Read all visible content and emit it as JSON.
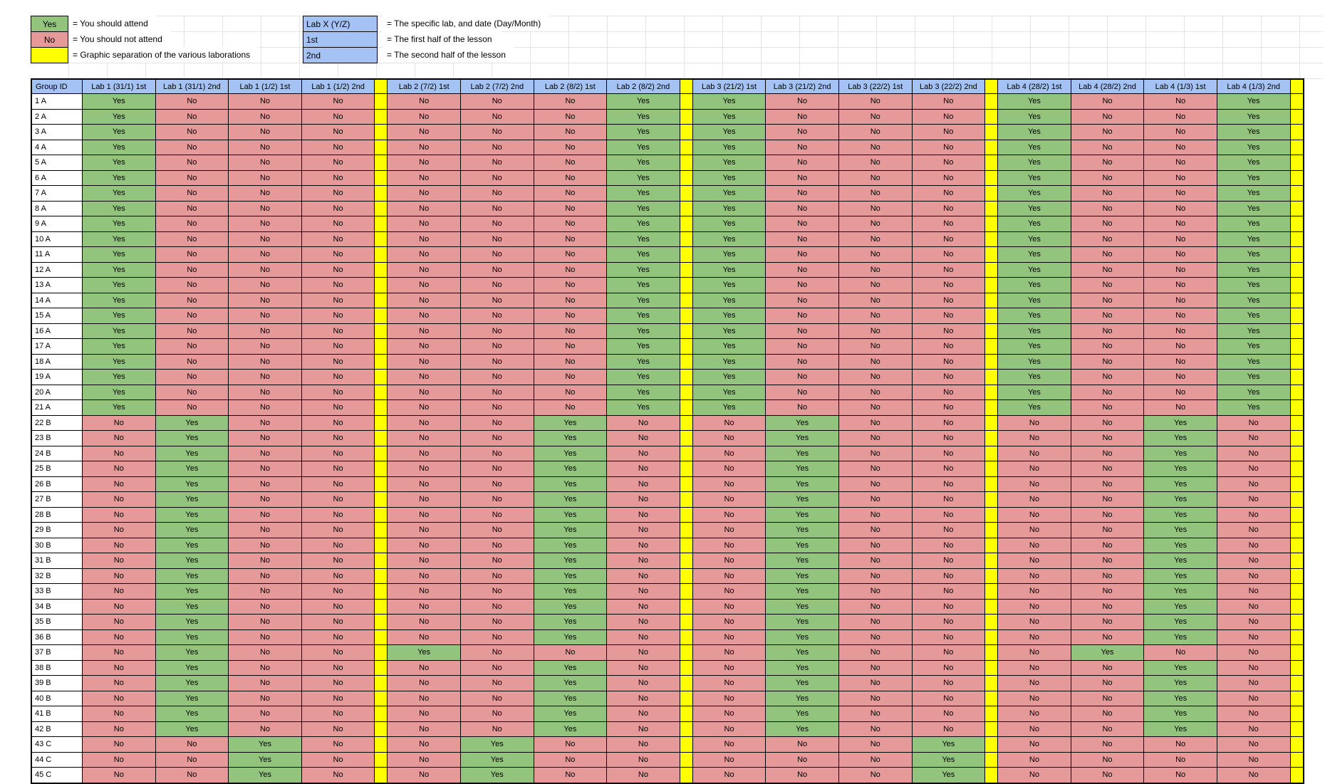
{
  "colors": {
    "yes": "#93c47d",
    "no": "#e69999",
    "separator": "#ffff00",
    "key": "#a4c2f4",
    "gridline": "#e4e4e4",
    "border": "#000000"
  },
  "legend": {
    "left": [
      {
        "label": "Yes",
        "description": "= You should attend"
      },
      {
        "label": "No",
        "description": "= You should not attend"
      },
      {
        "label": "",
        "description": "= Graphic separation of the various laborations"
      }
    ],
    "right": [
      {
        "label": "Lab X (Y/Z)",
        "description": "= The specific lab, and date (Day/Month)"
      },
      {
        "label": "1st",
        "description": "= The first half of the lesson"
      },
      {
        "label": "2nd",
        "description": "= The second half of the lesson"
      }
    ]
  },
  "table": {
    "corner_header": "Group ID",
    "columns": [
      "Lab 1 (31/1) 1st",
      "Lab 1 (31/1) 2nd",
      "Lab 1 (1/2) 1st",
      "Lab 1 (1/2) 2nd",
      "Lab 2 (7/2) 1st",
      "Lab 2 (7/2) 2nd",
      "Lab 2 (8/2) 1st",
      "Lab 2 (8/2) 2nd",
      "Lab 3 (21/2) 1st",
      "Lab 3 (21/2) 2nd",
      "Lab 3 (22/2) 1st",
      "Lab 3 (22/2) 2nd",
      "Lab 4 (28/2) 1st",
      "Lab 4 (28/2) 2nd",
      "Lab 4 (1/3) 1st",
      "Lab 4 (1/3) 2nd"
    ],
    "rows": [
      {
        "id": "1 A",
        "values": [
          "Yes",
          "No",
          "No",
          "No",
          "No",
          "No",
          "No",
          "Yes",
          "Yes",
          "No",
          "No",
          "No",
          "Yes",
          "No",
          "No",
          "Yes"
        ]
      },
      {
        "id": "2 A",
        "values": [
          "Yes",
          "No",
          "No",
          "No",
          "No",
          "No",
          "No",
          "Yes",
          "Yes",
          "No",
          "No",
          "No",
          "Yes",
          "No",
          "No",
          "Yes"
        ]
      },
      {
        "id": "3 A",
        "values": [
          "Yes",
          "No",
          "No",
          "No",
          "No",
          "No",
          "No",
          "Yes",
          "Yes",
          "No",
          "No",
          "No",
          "Yes",
          "No",
          "No",
          "Yes"
        ]
      },
      {
        "id": "4 A",
        "values": [
          "Yes",
          "No",
          "No",
          "No",
          "No",
          "No",
          "No",
          "Yes",
          "Yes",
          "No",
          "No",
          "No",
          "Yes",
          "No",
          "No",
          "Yes"
        ]
      },
      {
        "id": "5 A",
        "values": [
          "Yes",
          "No",
          "No",
          "No",
          "No",
          "No",
          "No",
          "Yes",
          "Yes",
          "No",
          "No",
          "No",
          "Yes",
          "No",
          "No",
          "Yes"
        ]
      },
      {
        "id": "6 A",
        "values": [
          "Yes",
          "No",
          "No",
          "No",
          "No",
          "No",
          "No",
          "Yes",
          "Yes",
          "No",
          "No",
          "No",
          "Yes",
          "No",
          "No",
          "Yes"
        ]
      },
      {
        "id": "7 A",
        "values": [
          "Yes",
          "No",
          "No",
          "No",
          "No",
          "No",
          "No",
          "Yes",
          "Yes",
          "No",
          "No",
          "No",
          "Yes",
          "No",
          "No",
          "Yes"
        ]
      },
      {
        "id": "8 A",
        "values": [
          "Yes",
          "No",
          "No",
          "No",
          "No",
          "No",
          "No",
          "Yes",
          "Yes",
          "No",
          "No",
          "No",
          "Yes",
          "No",
          "No",
          "Yes"
        ]
      },
      {
        "id": "9 A",
        "values": [
          "Yes",
          "No",
          "No",
          "No",
          "No",
          "No",
          "No",
          "Yes",
          "Yes",
          "No",
          "No",
          "No",
          "Yes",
          "No",
          "No",
          "Yes"
        ]
      },
      {
        "id": "10 A",
        "values": [
          "Yes",
          "No",
          "No",
          "No",
          "No",
          "No",
          "No",
          "Yes",
          "Yes",
          "No",
          "No",
          "No",
          "Yes",
          "No",
          "No",
          "Yes"
        ]
      },
      {
        "id": "11 A",
        "values": [
          "Yes",
          "No",
          "No",
          "No",
          "No",
          "No",
          "No",
          "Yes",
          "Yes",
          "No",
          "No",
          "No",
          "Yes",
          "No",
          "No",
          "Yes"
        ]
      },
      {
        "id": "12 A",
        "values": [
          "Yes",
          "No",
          "No",
          "No",
          "No",
          "No",
          "No",
          "Yes",
          "Yes",
          "No",
          "No",
          "No",
          "Yes",
          "No",
          "No",
          "Yes"
        ]
      },
      {
        "id": "13 A",
        "values": [
          "Yes",
          "No",
          "No",
          "No",
          "No",
          "No",
          "No",
          "Yes",
          "Yes",
          "No",
          "No",
          "No",
          "Yes",
          "No",
          "No",
          "Yes"
        ]
      },
      {
        "id": "14 A",
        "values": [
          "Yes",
          "No",
          "No",
          "No",
          "No",
          "No",
          "No",
          "Yes",
          "Yes",
          "No",
          "No",
          "No",
          "Yes",
          "No",
          "No",
          "Yes"
        ]
      },
      {
        "id": "15 A",
        "values": [
          "Yes",
          "No",
          "No",
          "No",
          "No",
          "No",
          "No",
          "Yes",
          "Yes",
          "No",
          "No",
          "No",
          "Yes",
          "No",
          "No",
          "Yes"
        ]
      },
      {
        "id": "16 A",
        "values": [
          "Yes",
          "No",
          "No",
          "No",
          "No",
          "No",
          "No",
          "Yes",
          "Yes",
          "No",
          "No",
          "No",
          "Yes",
          "No",
          "No",
          "Yes"
        ]
      },
      {
        "id": "17 A",
        "values": [
          "Yes",
          "No",
          "No",
          "No",
          "No",
          "No",
          "No",
          "Yes",
          "Yes",
          "No",
          "No",
          "No",
          "Yes",
          "No",
          "No",
          "Yes"
        ]
      },
      {
        "id": "18 A",
        "values": [
          "Yes",
          "No",
          "No",
          "No",
          "No",
          "No",
          "No",
          "Yes",
          "Yes",
          "No",
          "No",
          "No",
          "Yes",
          "No",
          "No",
          "Yes"
        ]
      },
      {
        "id": "19 A",
        "values": [
          "Yes",
          "No",
          "No",
          "No",
          "No",
          "No",
          "No",
          "Yes",
          "Yes",
          "No",
          "No",
          "No",
          "Yes",
          "No",
          "No",
          "Yes"
        ]
      },
      {
        "id": "20 A",
        "values": [
          "Yes",
          "No",
          "No",
          "No",
          "No",
          "No",
          "No",
          "Yes",
          "Yes",
          "No",
          "No",
          "No",
          "Yes",
          "No",
          "No",
          "Yes"
        ]
      },
      {
        "id": "21 A",
        "values": [
          "Yes",
          "No",
          "No",
          "No",
          "No",
          "No",
          "No",
          "Yes",
          "Yes",
          "No",
          "No",
          "No",
          "Yes",
          "No",
          "No",
          "Yes"
        ]
      },
      {
        "id": "22 B",
        "values": [
          "No",
          "Yes",
          "No",
          "No",
          "No",
          "No",
          "Yes",
          "No",
          "No",
          "Yes",
          "No",
          "No",
          "No",
          "No",
          "Yes",
          "No"
        ]
      },
      {
        "id": "23 B",
        "values": [
          "No",
          "Yes",
          "No",
          "No",
          "No",
          "No",
          "Yes",
          "No",
          "No",
          "Yes",
          "No",
          "No",
          "No",
          "No",
          "Yes",
          "No"
        ]
      },
      {
        "id": "24 B",
        "values": [
          "No",
          "Yes",
          "No",
          "No",
          "No",
          "No",
          "Yes",
          "No",
          "No",
          "Yes",
          "No",
          "No",
          "No",
          "No",
          "Yes",
          "No"
        ]
      },
      {
        "id": "25 B",
        "values": [
          "No",
          "Yes",
          "No",
          "No",
          "No",
          "No",
          "Yes",
          "No",
          "No",
          "Yes",
          "No",
          "No",
          "No",
          "No",
          "Yes",
          "No"
        ]
      },
      {
        "id": "26 B",
        "values": [
          "No",
          "Yes",
          "No",
          "No",
          "No",
          "No",
          "Yes",
          "No",
          "No",
          "Yes",
          "No",
          "No",
          "No",
          "No",
          "Yes",
          "No"
        ]
      },
      {
        "id": "27 B",
        "values": [
          "No",
          "Yes",
          "No",
          "No",
          "No",
          "No",
          "Yes",
          "No",
          "No",
          "Yes",
          "No",
          "No",
          "No",
          "No",
          "Yes",
          "No"
        ]
      },
      {
        "id": "28 B",
        "values": [
          "No",
          "Yes",
          "No",
          "No",
          "No",
          "No",
          "Yes",
          "No",
          "No",
          "Yes",
          "No",
          "No",
          "No",
          "No",
          "Yes",
          "No"
        ]
      },
      {
        "id": "29 B",
        "values": [
          "No",
          "Yes",
          "No",
          "No",
          "No",
          "No",
          "Yes",
          "No",
          "No",
          "Yes",
          "No",
          "No",
          "No",
          "No",
          "Yes",
          "No"
        ]
      },
      {
        "id": "30 B",
        "values": [
          "No",
          "Yes",
          "No",
          "No",
          "No",
          "No",
          "Yes",
          "No",
          "No",
          "Yes",
          "No",
          "No",
          "No",
          "No",
          "Yes",
          "No"
        ]
      },
      {
        "id": "31 B",
        "values": [
          "No",
          "Yes",
          "No",
          "No",
          "No",
          "No",
          "Yes",
          "No",
          "No",
          "Yes",
          "No",
          "No",
          "No",
          "No",
          "Yes",
          "No"
        ]
      },
      {
        "id": "32 B",
        "values": [
          "No",
          "Yes",
          "No",
          "No",
          "No",
          "No",
          "Yes",
          "No",
          "No",
          "Yes",
          "No",
          "No",
          "No",
          "No",
          "Yes",
          "No"
        ]
      },
      {
        "id": "33 B",
        "values": [
          "No",
          "Yes",
          "No",
          "No",
          "No",
          "No",
          "Yes",
          "No",
          "No",
          "Yes",
          "No",
          "No",
          "No",
          "No",
          "Yes",
          "No"
        ]
      },
      {
        "id": "34 B",
        "values": [
          "No",
          "Yes",
          "No",
          "No",
          "No",
          "No",
          "Yes",
          "No",
          "No",
          "Yes",
          "No",
          "No",
          "No",
          "No",
          "Yes",
          "No"
        ]
      },
      {
        "id": "35 B",
        "values": [
          "No",
          "Yes",
          "No",
          "No",
          "No",
          "No",
          "Yes",
          "No",
          "No",
          "Yes",
          "No",
          "No",
          "No",
          "No",
          "Yes",
          "No"
        ]
      },
      {
        "id": "36 B",
        "values": [
          "No",
          "Yes",
          "No",
          "No",
          "No",
          "No",
          "Yes",
          "No",
          "No",
          "Yes",
          "No",
          "No",
          "No",
          "No",
          "Yes",
          "No"
        ]
      },
      {
        "id": "37 B",
        "values": [
          "No",
          "Yes",
          "No",
          "No",
          "Yes",
          "No",
          "No",
          "No",
          "No",
          "Yes",
          "No",
          "No",
          "No",
          "Yes",
          "No",
          "No"
        ]
      },
      {
        "id": "38 B",
        "values": [
          "No",
          "Yes",
          "No",
          "No",
          "No",
          "No",
          "Yes",
          "No",
          "No",
          "Yes",
          "No",
          "No",
          "No",
          "No",
          "Yes",
          "No"
        ]
      },
      {
        "id": "39 B",
        "values": [
          "No",
          "Yes",
          "No",
          "No",
          "No",
          "No",
          "Yes",
          "No",
          "No",
          "Yes",
          "No",
          "No",
          "No",
          "No",
          "Yes",
          "No"
        ]
      },
      {
        "id": "40 B",
        "values": [
          "No",
          "Yes",
          "No",
          "No",
          "No",
          "No",
          "Yes",
          "No",
          "No",
          "Yes",
          "No",
          "No",
          "No",
          "No",
          "Yes",
          "No"
        ]
      },
      {
        "id": "41 B",
        "values": [
          "No",
          "Yes",
          "No",
          "No",
          "No",
          "No",
          "Yes",
          "No",
          "No",
          "Yes",
          "No",
          "No",
          "No",
          "No",
          "Yes",
          "No"
        ]
      },
      {
        "id": "42 B",
        "values": [
          "No",
          "Yes",
          "No",
          "No",
          "No",
          "No",
          "Yes",
          "No",
          "No",
          "Yes",
          "No",
          "No",
          "No",
          "No",
          "Yes",
          "No"
        ]
      },
      {
        "id": "43 C",
        "values": [
          "No",
          "No",
          "Yes",
          "No",
          "No",
          "Yes",
          "No",
          "No",
          "No",
          "No",
          "No",
          "Yes",
          "No",
          "No",
          "No",
          "No"
        ]
      },
      {
        "id": "44 C",
        "values": [
          "No",
          "No",
          "Yes",
          "No",
          "No",
          "Yes",
          "No",
          "No",
          "No",
          "No",
          "No",
          "Yes",
          "No",
          "No",
          "No",
          "No"
        ]
      },
      {
        "id": "45 C",
        "values": [
          "No",
          "No",
          "Yes",
          "No",
          "No",
          "Yes",
          "No",
          "No",
          "No",
          "No",
          "No",
          "Yes",
          "No",
          "No",
          "No",
          "No"
        ]
      }
    ]
  }
}
